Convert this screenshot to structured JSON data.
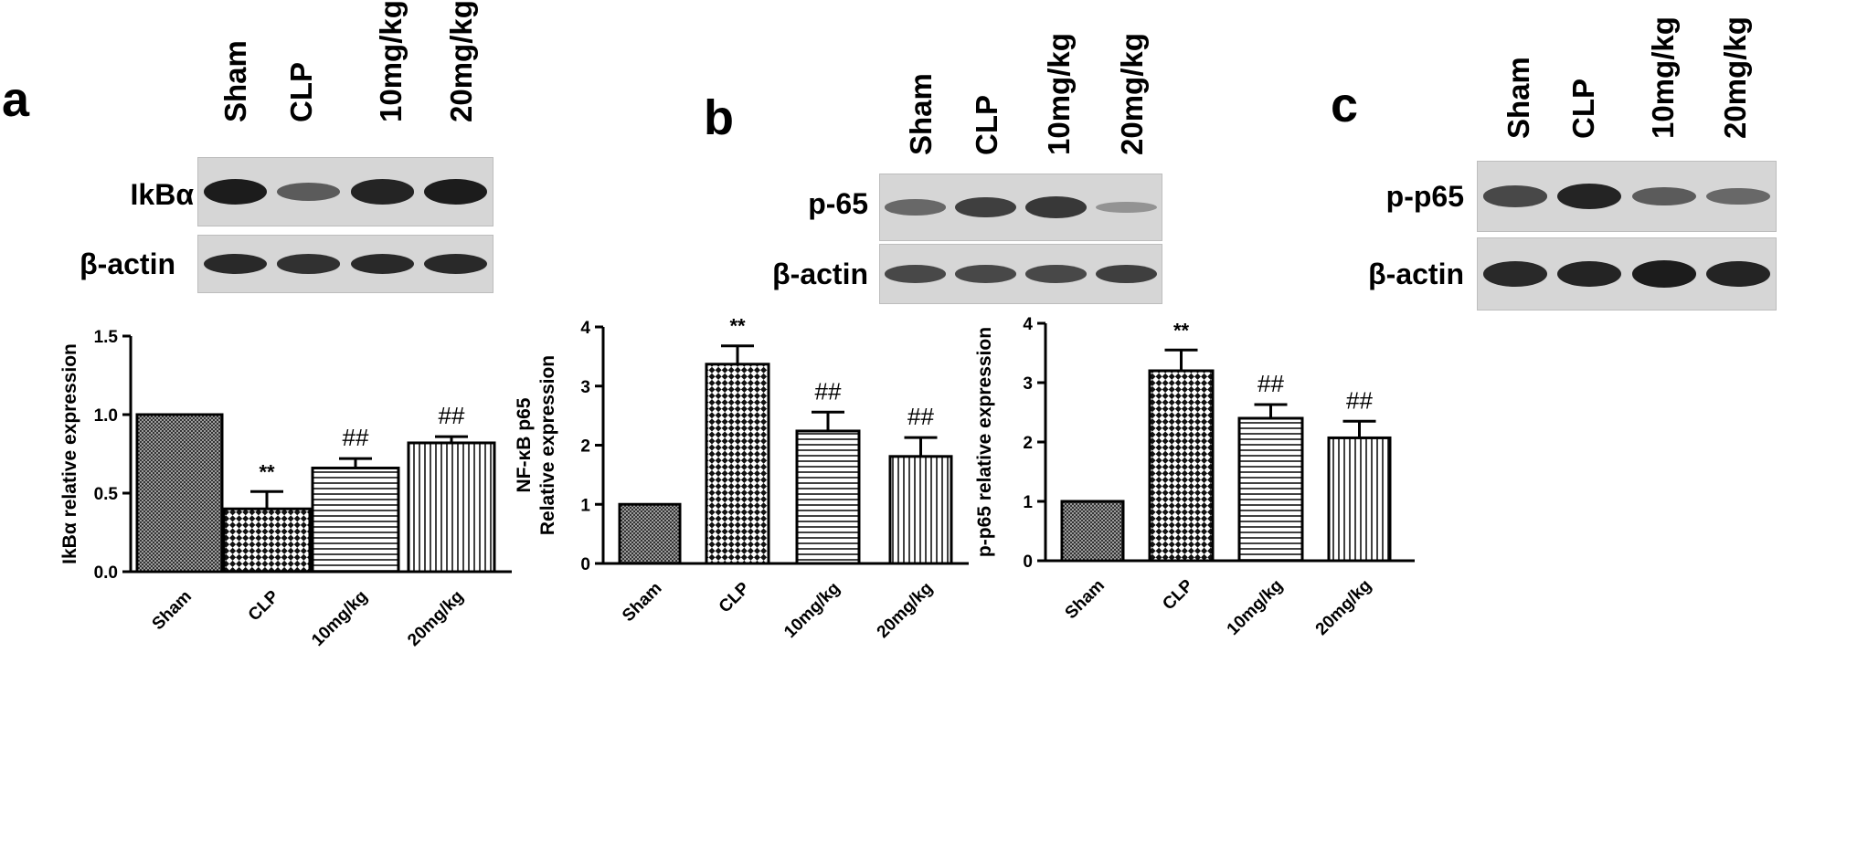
{
  "panels": [
    {
      "letter": "a",
      "lanes": [
        "Sham",
        "CLP",
        "10mg/kg",
        "20mg/kg"
      ],
      "blots": [
        {
          "label": "IkBα",
          "bands": [
            1.0,
            0.55,
            0.95,
            1.0
          ]
        },
        {
          "label": "β-actin",
          "bands": [
            0.9,
            0.85,
            0.9,
            0.9
          ]
        }
      ]
    },
    {
      "letter": "b",
      "lanes": [
        "Sham",
        "CLP",
        "10mg/kg",
        "20mg/kg"
      ],
      "blots": [
        {
          "label": "p-65",
          "bands": [
            0.45,
            0.75,
            0.8,
            0.15
          ]
        },
        {
          "label": "β-actin",
          "bands": [
            0.7,
            0.7,
            0.7,
            0.75
          ]
        }
      ]
    },
    {
      "letter": "c",
      "lanes": [
        "Sham",
        "CLP",
        "10mg/kg",
        "20mg/kg"
      ],
      "blots": [
        {
          "label": "p-p65",
          "bands": [
            0.7,
            0.95,
            0.55,
            0.45
          ]
        },
        {
          "label": "β-actin",
          "bands": [
            0.9,
            0.95,
            1.0,
            0.95
          ]
        }
      ]
    }
  ],
  "chart_data": [
    {
      "type": "bar",
      "categories": [
        "Sham",
        "CLP",
        "10mg/kg",
        "20mg/kg"
      ],
      "values": [
        1.0,
        0.4,
        0.66,
        0.82
      ],
      "errors": [
        0.0,
        0.11,
        0.06,
        0.04
      ],
      "annotations": [
        "",
        "**",
        "##",
        "##"
      ],
      "patterns": [
        "crosshatch",
        "checker",
        "horizontal",
        "vertical"
      ],
      "ylabel": "IkBα relative expression",
      "ylim": [
        0,
        1.5
      ],
      "yticks": [
        "0.0",
        "0.5",
        "1.0",
        "1.5"
      ]
    },
    {
      "type": "bar",
      "categories": [
        "Sham",
        "CLP",
        "10mg/kg",
        "20mg/kg"
      ],
      "values": [
        1.0,
        3.37,
        2.24,
        1.81
      ],
      "errors": [
        0.0,
        0.31,
        0.32,
        0.32
      ],
      "annotations": [
        "",
        "**",
        "##",
        "##"
      ],
      "patterns": [
        "crosshatch",
        "checker",
        "horizontal",
        "vertical"
      ],
      "ylabel": [
        "NF-κB p65",
        "Relative expression"
      ],
      "ylim": [
        0,
        4
      ],
      "yticks": [
        "0",
        "1",
        "2",
        "3",
        "4"
      ]
    },
    {
      "type": "bar",
      "categories": [
        "Sham",
        "CLP",
        "10mg/kg",
        "20mg/kg"
      ],
      "values": [
        1.0,
        3.2,
        2.4,
        2.07
      ],
      "errors": [
        0.0,
        0.35,
        0.23,
        0.28
      ],
      "annotations": [
        "",
        "**",
        "##",
        "##"
      ],
      "patterns": [
        "crosshatch",
        "checker",
        "horizontal",
        "vertical"
      ],
      "ylabel": "p-p65 relative expression",
      "ylim": [
        0,
        4
      ],
      "yticks": [
        "0",
        "1",
        "2",
        "3",
        "4"
      ]
    }
  ]
}
